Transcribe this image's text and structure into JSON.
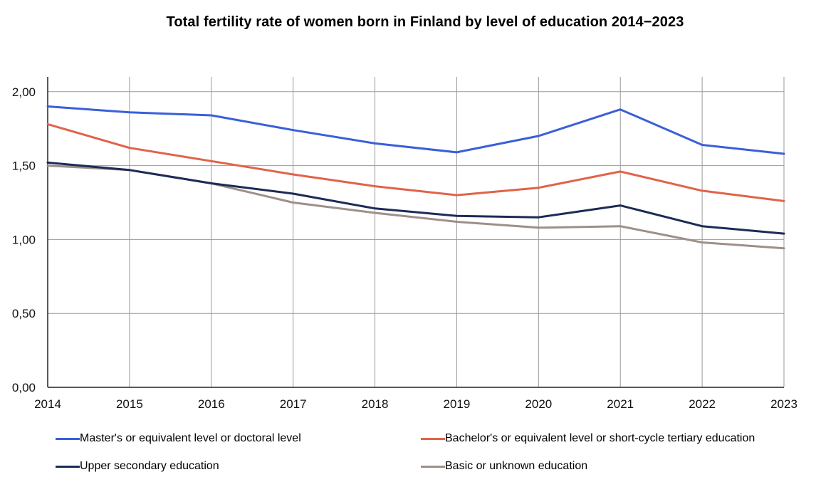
{
  "chart_data": {
    "type": "line",
    "title": "Total fertility rate of women born in Finland by level of education 2014−2023",
    "xlabel": "",
    "ylabel": "",
    "x": [
      "2014",
      "2015",
      "2016",
      "2017",
      "2018",
      "2019",
      "2020",
      "2021",
      "2022",
      "2023"
    ],
    "ylim": [
      0,
      2.1
    ],
    "y_ticks": [
      "0,00",
      "0,50",
      "1,00",
      "1,50",
      "2,00"
    ],
    "y_tick_values": [
      0,
      0.5,
      1.0,
      1.5,
      2.0
    ],
    "grid": true,
    "legend_position": "bottom",
    "series": [
      {
        "name": "Master's or equivalent level or doctoral level",
        "color": "#3a5fd9",
        "values": [
          1.9,
          1.86,
          1.84,
          1.74,
          1.65,
          1.59,
          1.7,
          1.88,
          1.64,
          1.58
        ]
      },
      {
        "name": "Bachelor's or equivalent level or short-cycle tertiary education",
        "color": "#e0634a",
        "values": [
          1.78,
          1.62,
          1.53,
          1.44,
          1.36,
          1.3,
          1.35,
          1.46,
          1.33,
          1.26
        ]
      },
      {
        "name": "Upper secondary education",
        "color": "#1c2b57",
        "values": [
          1.52,
          1.47,
          1.38,
          1.31,
          1.21,
          1.16,
          1.15,
          1.23,
          1.09,
          1.04
        ]
      },
      {
        "name": "Basic or unknown education",
        "color": "#9e8f8a",
        "values": [
          1.5,
          1.47,
          1.38,
          1.25,
          1.18,
          1.12,
          1.08,
          1.09,
          0.98,
          0.94
        ]
      }
    ]
  }
}
